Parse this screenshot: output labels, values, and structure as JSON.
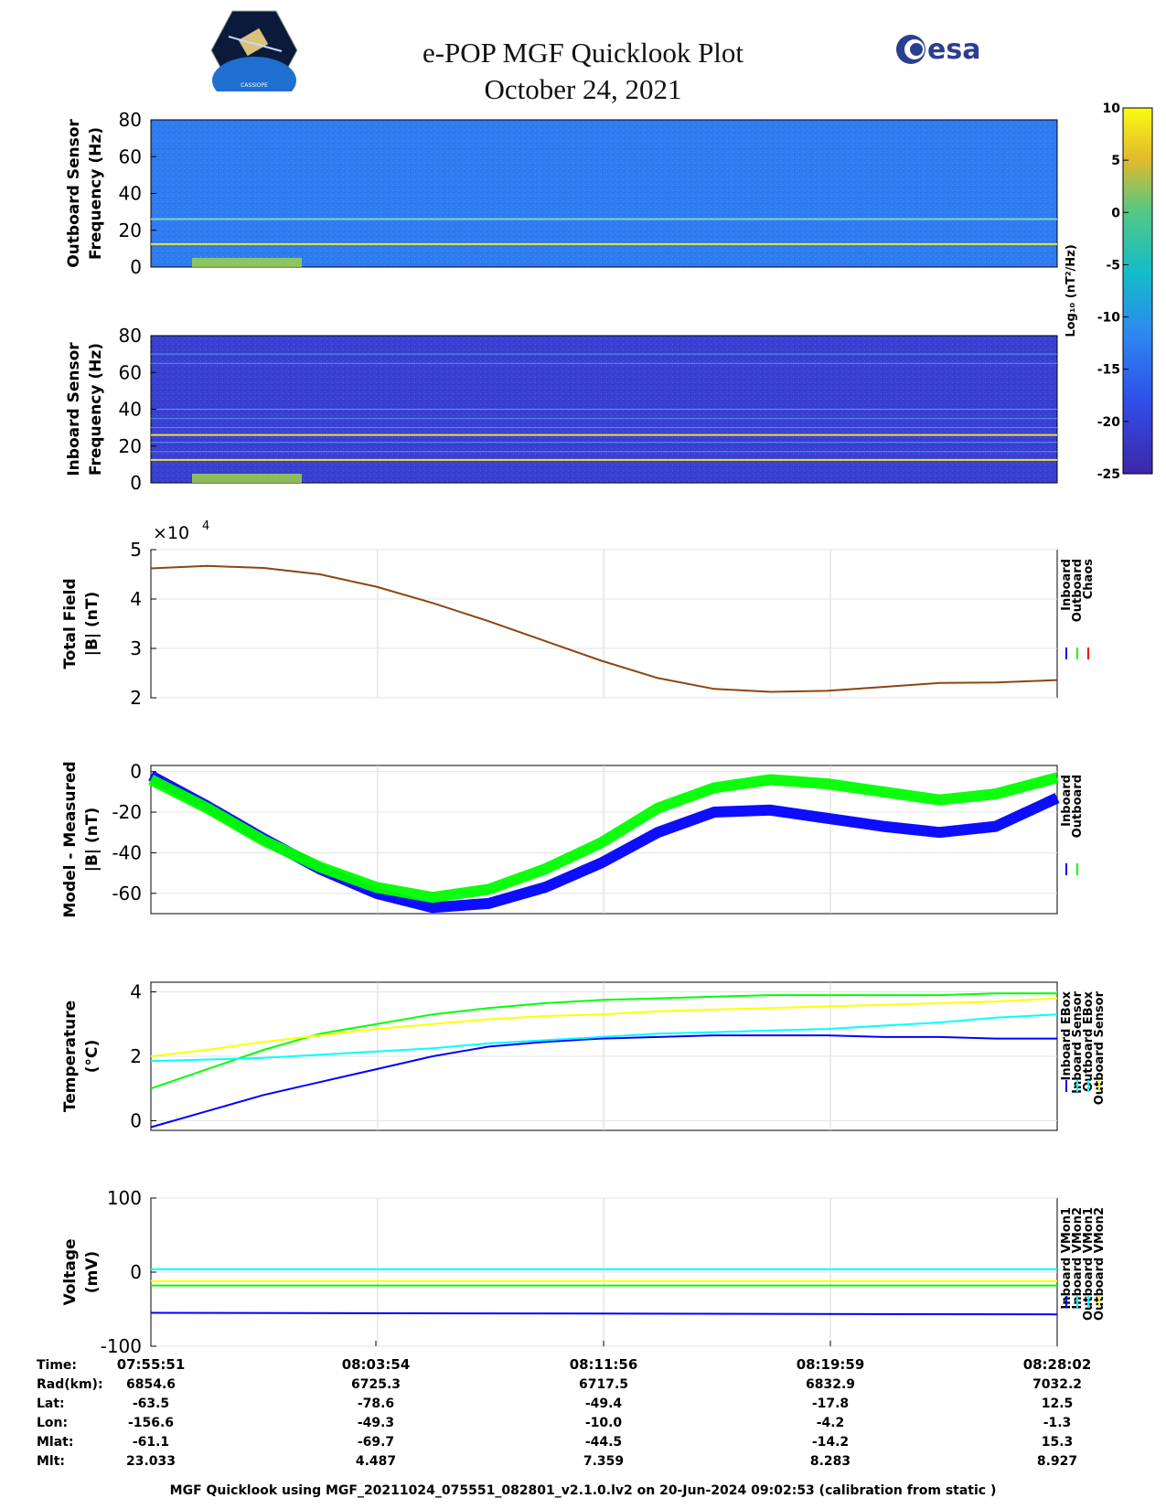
{
  "header": {
    "title_line1": "e-POP MGF Quicklook Plot",
    "title_line2": "October 24, 2021",
    "left_logo_text": "CASSIOPE",
    "right_logo_text": "esa"
  },
  "colors": {
    "inboard": "#0000ff",
    "outboard": "#00ff00",
    "chaos": "#ff0000",
    "inboard_sensor": "#ffff00",
    "outboard_ebox": "#00ffff",
    "spectrogram_bg": "#2f7bf0",
    "inboard_spec_bg": "#3a3fd0"
  },
  "colorbar": {
    "label": "Log₁₀ (nT²/Hz)",
    "ticks": [
      "10",
      "5",
      "0",
      "-5",
      "-10",
      "-15",
      "-20",
      "-25"
    ]
  },
  "chart_data": [
    {
      "type": "heatmap",
      "ylabel_line1": "Outboard Sensor",
      "ylabel_line2": "Frequency (Hz)",
      "ylim": [
        0,
        80
      ],
      "yticks": [
        "80",
        "60",
        "40",
        "20",
        "0"
      ],
      "line_features_hz": [
        12.5,
        26
      ],
      "colorscale_range": [
        -25,
        10
      ]
    },
    {
      "type": "heatmap",
      "ylabel_line1": "Inboard Sensor",
      "ylabel_line2": "Frequency (Hz)",
      "ylim": [
        0,
        80
      ],
      "yticks": [
        "80",
        "60",
        "40",
        "20",
        "0"
      ],
      "line_features_hz": [
        12.5,
        26,
        17,
        22,
        30,
        35,
        40,
        65,
        70
      ],
      "colorscale_range": [
        -25,
        10
      ]
    },
    {
      "type": "line",
      "ylabel_line1": "Total Field",
      "ylabel_line2": "|B| (nT)",
      "multiplier": "×10",
      "multiplier_exp": "4",
      "ylim": [
        2,
        5
      ],
      "yticks": [
        "5",
        "4",
        "3",
        "2"
      ],
      "legend": [
        "Inboard",
        "Outboard",
        "Chaos"
      ],
      "x_minutes": [
        0,
        2,
        4,
        6,
        8,
        10,
        12,
        14,
        16,
        18,
        20,
        22,
        24,
        26,
        28,
        30,
        32.18
      ],
      "series": [
        {
          "name": "Chaos",
          "values": [
            4.62,
            4.67,
            4.63,
            4.5,
            4.25,
            3.92,
            3.55,
            3.15,
            2.75,
            2.4,
            2.18,
            2.12,
            2.14,
            2.22,
            2.3,
            2.31,
            2.36
          ]
        }
      ]
    },
    {
      "type": "line",
      "ylabel_line1": "Model - Measured",
      "ylabel_line2": "|B| (nT)",
      "ylim": [
        -70,
        3
      ],
      "yticks": [
        "0",
        "-20",
        "-40",
        "-60"
      ],
      "legend": [
        "Inboard",
        "Outboard"
      ],
      "x_minutes": [
        0,
        2,
        4,
        6,
        8,
        10,
        12,
        14,
        16,
        18,
        20,
        22,
        24,
        26,
        28,
        30,
        32.18
      ],
      "series": [
        {
          "name": "Inboard",
          "values": [
            -2,
            -17,
            -33,
            -48,
            -60,
            -67,
            -65,
            -57,
            -45,
            -30,
            -20,
            -19,
            -23,
            -27,
            -30,
            -27,
            -13
          ]
        },
        {
          "name": "Outboard",
          "values": [
            -4,
            -18,
            -34,
            -47,
            -57,
            -62,
            -58,
            -48,
            -35,
            -18,
            -8,
            -4,
            -6,
            -10,
            -14,
            -11,
            -3
          ]
        }
      ]
    },
    {
      "type": "line",
      "ylabel_line1": "Temperature",
      "ylabel_line2": "(°C)",
      "ylim": [
        -0.3,
        4.3
      ],
      "yticks": [
        "4",
        "2",
        "0"
      ],
      "legend": [
        "Inboard EBox",
        "Inboard Sensor",
        "Outboard EBox",
        "Outboard Sensor"
      ],
      "x_minutes": [
        0,
        2,
        4,
        6,
        8,
        10,
        12,
        14,
        16,
        18,
        20,
        22,
        24,
        26,
        28,
        30,
        32.18
      ],
      "series": [
        {
          "name": "Inboard EBox",
          "values": [
            -0.2,
            0.3,
            0.8,
            1.2,
            1.6,
            2.0,
            2.3,
            2.45,
            2.55,
            2.6,
            2.65,
            2.65,
            2.65,
            2.6,
            2.6,
            2.55,
            2.55
          ]
        },
        {
          "name": "Inboard Sensor",
          "values": [
            1.0,
            1.6,
            2.2,
            2.7,
            3.0,
            3.3,
            3.5,
            3.65,
            3.75,
            3.8,
            3.85,
            3.9,
            3.9,
            3.9,
            3.9,
            3.95,
            3.95
          ]
        },
        {
          "name": "Outboard EBox",
          "values": [
            1.85,
            1.9,
            1.95,
            2.05,
            2.15,
            2.25,
            2.4,
            2.5,
            2.6,
            2.7,
            2.75,
            2.8,
            2.85,
            2.95,
            3.05,
            3.2,
            3.3
          ]
        },
        {
          "name": "Outboard Sensor",
          "values": [
            2.0,
            2.2,
            2.45,
            2.65,
            2.85,
            3.0,
            3.15,
            3.25,
            3.3,
            3.4,
            3.45,
            3.5,
            3.55,
            3.6,
            3.65,
            3.7,
            3.8
          ]
        }
      ]
    },
    {
      "type": "line",
      "ylabel_line1": "Voltage",
      "ylabel_line2": "(mV)",
      "ylim": [
        -100,
        100
      ],
      "yticks": [
        "100",
        "0",
        "-100"
      ],
      "legend": [
        "Inboard VMon1",
        "Inboard VMon2",
        "Outboard VMon1",
        "Outboard VMon2"
      ],
      "x_minutes": [
        0,
        32.18
      ],
      "series": [
        {
          "name": "Inboard VMon1",
          "values": [
            -55,
            -57
          ]
        },
        {
          "name": "Inboard VMon2",
          "values": [
            4,
            4
          ]
        },
        {
          "name": "Outboard VMon1",
          "values": [
            -18,
            -18
          ]
        },
        {
          "name": "Outboard VMon2",
          "values": [
            -12,
            -12
          ]
        }
      ]
    }
  ],
  "ephemeris": {
    "row_labels": [
      "Time:",
      "Rad(km):",
      "Lat:",
      "Lon:",
      "Mlat:",
      "Mlt:"
    ],
    "columns": [
      [
        "07:55:51",
        "6854.6",
        "-63.5",
        "-156.6",
        "-61.1",
        "23.033"
      ],
      [
        "08:03:54",
        "6725.3",
        "-78.6",
        "-49.3",
        "-69.7",
        "4.487"
      ],
      [
        "08:11:56",
        "6717.5",
        "-49.4",
        "-10.0",
        "-44.5",
        "7.359"
      ],
      [
        "08:19:59",
        "6832.9",
        "-17.8",
        "-4.2",
        "-14.2",
        "8.283"
      ],
      [
        "08:28:02",
        "7032.2",
        "12.5",
        "-1.3",
        "15.3",
        "8.927"
      ]
    ]
  },
  "footer": "MGF Quicklook using MGF_20211024_075551_082801_v2.1.0.lv2 on 20-Jun-2024 09:02:53 (calibration from static )"
}
